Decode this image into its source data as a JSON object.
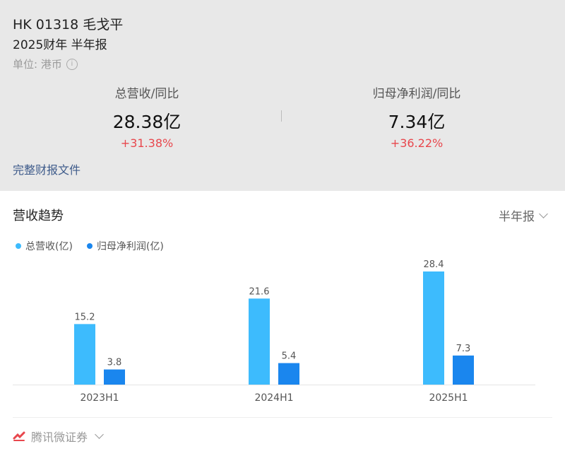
{
  "header": {
    "stock": "HK 01318 毛戈平",
    "period": "2025财年 半年报",
    "unit": "单位: 港币",
    "metrics": [
      {
        "label": "总营收/同比",
        "value": "28.38亿",
        "change": "+31.38%"
      },
      {
        "label": "归母净利润/同比",
        "value": "7.34亿",
        "change": "+36.22%"
      }
    ],
    "report_link": "完整财报文件"
  },
  "section": {
    "title": "营收趋势",
    "period_select": "半年报"
  },
  "legend": [
    {
      "name": "总营收(亿)",
      "color": "#3dbbfd"
    },
    {
      "name": "归母净利润(亿)",
      "color": "#1a86ee"
    }
  ],
  "chart_data": {
    "type": "bar",
    "categories": [
      "2023H1",
      "2024H1",
      "2025H1"
    ],
    "series": [
      {
        "name": "总营收(亿)",
        "values": [
          15.2,
          21.6,
          28.4
        ],
        "color": "#3dbbfd"
      },
      {
        "name": "归母净利润(亿)",
        "values": [
          3.8,
          5.4,
          7.3
        ],
        "color": "#1a86ee"
      }
    ],
    "ylim": [
      0,
      28.4
    ]
  },
  "footer": {
    "brand": "腾讯微证券"
  }
}
